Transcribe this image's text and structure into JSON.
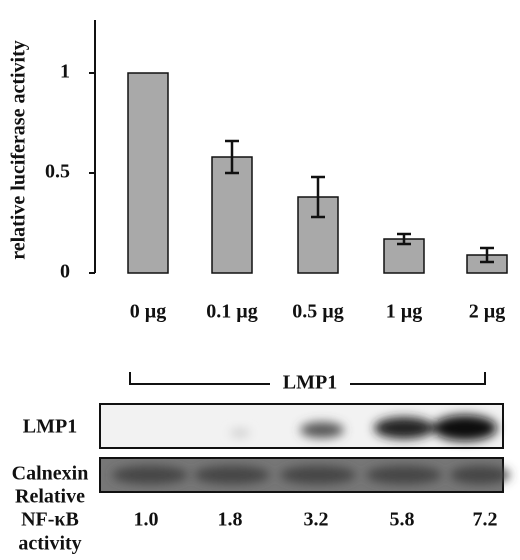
{
  "chart_data": {
    "type": "bar",
    "y_label": "relative luciferase activity",
    "categories": [
      "0 µg",
      "0.1 µg",
      "0.5 µg",
      "1 µg",
      "2 µg"
    ],
    "values": [
      1,
      0.58,
      0.38,
      0.17,
      0.09
    ],
    "errors": [
      null,
      0.08,
      0.1,
      0.025,
      0.035
    ],
    "color": "#a9a9a9",
    "ylim": [
      0,
      1.25
    ],
    "yticks": [
      0,
      0.5,
      1
    ]
  },
  "blot": {
    "group_label": "LMP1",
    "rows": [
      "LMP1",
      "Calnexin"
    ],
    "activity_label": [
      "Relative",
      "NF-κB",
      "activity"
    ],
    "activity": [
      "1.0",
      "1.8",
      "3.2",
      "5.8",
      "7.2"
    ]
  }
}
